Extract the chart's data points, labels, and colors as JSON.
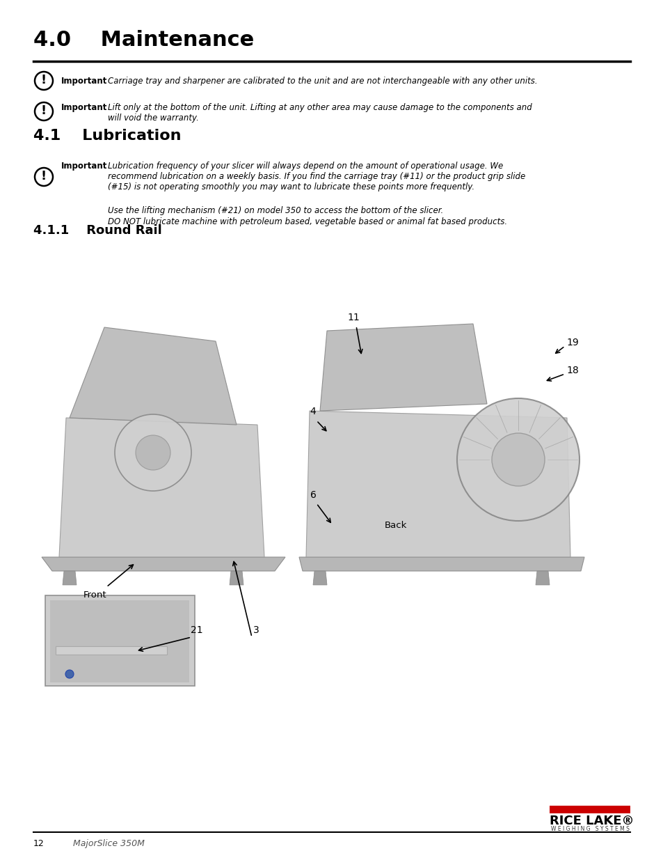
{
  "page_bg": "#ffffff",
  "title": "4.0    Maintenance",
  "title_fontsize": 22,
  "section_41_title": "4.1    Lubrication",
  "section_411_title": "4.1.1    Round Rail",
  "important_label": "Important",
  "important1_text": "Carriage tray and sharpener are calibrated to the unit and are not interchangeable with any other units.",
  "important2_text": "Lift only at the bottom of the unit. Lifting at any other area may cause damage to the components and\nwill void the warranty.",
  "important3_text": "Lubrication frequency of your slicer will always depend on the amount of operational usage. We\nrecommend lubrication on a weekly basis. If you find the carriage tray (#11) or the product grip slide\n(#15) is not operating smoothly you may want to lubricate these points more frequently.",
  "important3_line2": "Use the lifting mechanism (#21) on model 350 to access the bottom of the slicer.",
  "important3_line3": "DO NOT lubricate machine with petroleum based, vegetable based or animal fat based products.",
  "footer_page": "12",
  "footer_text": "MajorSlice 350M",
  "footer_logo_text": "RICE LAKE®",
  "footer_logo_sub": "W E I G H I N G   S Y S T E M S",
  "front_label": "Front",
  "back_label": "Back",
  "label_11": "11",
  "label_19": "19",
  "label_18": "18",
  "label_4": "4",
  "label_6": "6",
  "label_21": "21",
  "label_3": "3",
  "logo_red_color": "#cc0000",
  "text_color": "#000000"
}
